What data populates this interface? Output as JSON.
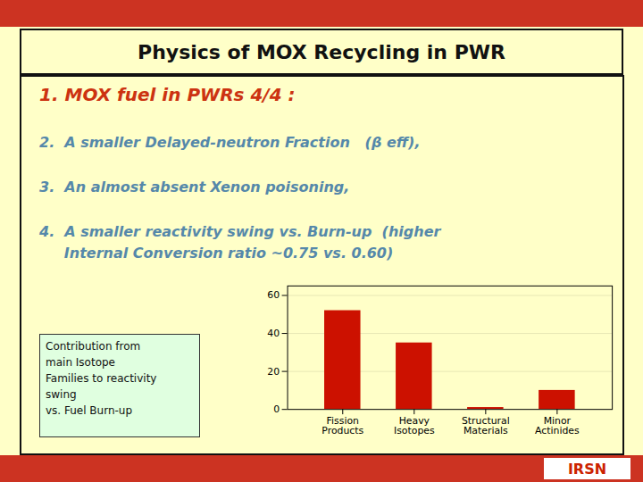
{
  "chart_data": {
    "type": "bar",
    "title": "Physics of MOX Recycling in PWR",
    "annotations": [
      "1. MOX fuel in PWRs 4/4 :",
      "2.  A smaller Delayed-neutron Fraction   (β eff),",
      "3.  An almost absent Xenon poisoning,",
      "4.  A smaller reactivity swing vs. Burn-up  (higher",
      "     Internal Conversion ratio ~0.75 vs. 0.60)",
      "Contribution from\nmain Isotope\nFamilies to reactivity\nswing\nvs. Fuel Burn-up",
      "IRSN"
    ],
    "categories": [
      "Fission\nProducts",
      "Heavy\nIsotopes",
      "Structural\nMaterials",
      "Minor\nActinides"
    ],
    "values": [
      52,
      35,
      1,
      10
    ],
    "color": "#cc1100",
    "ylim": [
      0,
      65
    ],
    "yticks": [
      0,
      20,
      40,
      60
    ],
    "grid": true
  }
}
